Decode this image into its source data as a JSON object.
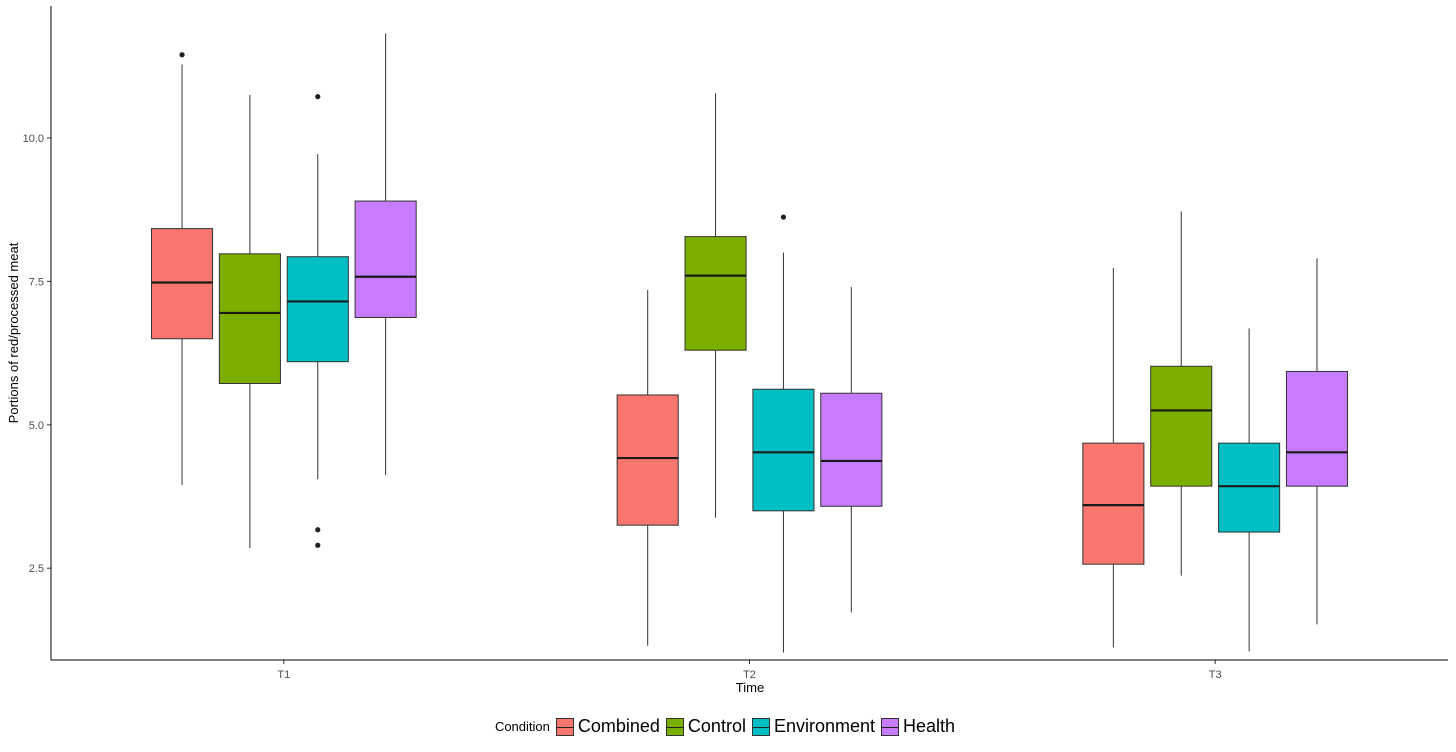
{
  "chart_data": {
    "type": "boxplot",
    "title": "",
    "xlabel": "Time",
    "ylabel": "Portions of red/processed meat",
    "ylim": [
      0.9,
      12.3
    ],
    "yticks": [
      2.5,
      5.0,
      7.5,
      10.0
    ],
    "ytick_labels": [
      "2.5",
      "5.0",
      "7.5",
      "10.0"
    ],
    "categories": [
      "T1",
      "T2",
      "T3"
    ],
    "legend_title": "Condition",
    "legend_position": "bottom",
    "grid": false,
    "series": [
      {
        "name": "Combined",
        "color": "#F8766D",
        "boxes": [
          {
            "category": "T1",
            "min": 3.95,
            "q1": 6.5,
            "median": 7.48,
            "q3": 8.42,
            "max": 11.28,
            "outliers": [
              11.45
            ]
          },
          {
            "category": "T2",
            "min": 1.15,
            "q1": 3.25,
            "median": 4.42,
            "q3": 5.52,
            "max": 7.35,
            "outliers": []
          },
          {
            "category": "T3",
            "min": 1.12,
            "q1": 2.57,
            "median": 3.6,
            "q3": 4.68,
            "max": 7.73,
            "outliers": []
          }
        ]
      },
      {
        "name": "Control",
        "color": "#7CAE00",
        "boxes": [
          {
            "category": "T1",
            "min": 2.85,
            "q1": 5.72,
            "median": 6.95,
            "q3": 7.98,
            "max": 10.75,
            "outliers": []
          },
          {
            "category": "T2",
            "min": 3.38,
            "q1": 6.3,
            "median": 7.6,
            "q3": 8.28,
            "max": 10.78,
            "outliers": []
          },
          {
            "category": "T3",
            "min": 2.37,
            "q1": 3.93,
            "median": 5.25,
            "q3": 6.02,
            "max": 8.72,
            "outliers": []
          }
        ]
      },
      {
        "name": "Environment",
        "color": "#00BFC4",
        "boxes": [
          {
            "category": "T1",
            "min": 4.05,
            "q1": 6.1,
            "median": 7.15,
            "q3": 7.93,
            "max": 9.72,
            "outliers": [
              10.72,
              3.17,
              2.9
            ]
          },
          {
            "category": "T2",
            "min": 1.03,
            "q1": 3.5,
            "median": 4.52,
            "q3": 5.62,
            "max": 8.0,
            "outliers": [
              8.62
            ]
          },
          {
            "category": "T3",
            "min": 1.05,
            "q1": 3.13,
            "median": 3.93,
            "q3": 4.68,
            "max": 6.68,
            "outliers": []
          }
        ]
      },
      {
        "name": "Health",
        "color": "#C77CFF",
        "boxes": [
          {
            "category": "T1",
            "min": 4.12,
            "q1": 6.87,
            "median": 7.58,
            "q3": 8.9,
            "max": 11.82,
            "outliers": []
          },
          {
            "category": "T2",
            "min": 1.73,
            "q1": 3.58,
            "median": 4.37,
            "q3": 5.55,
            "max": 7.4,
            "outliers": []
          },
          {
            "category": "T3",
            "min": 1.52,
            "q1": 3.93,
            "median": 4.52,
            "q3": 5.93,
            "max": 7.9,
            "outliers": []
          }
        ]
      }
    ]
  }
}
